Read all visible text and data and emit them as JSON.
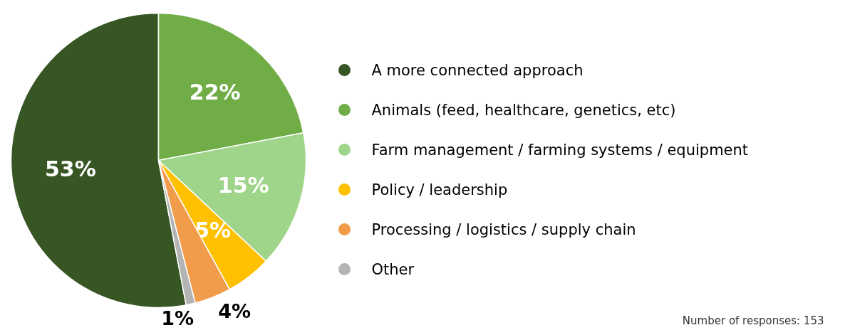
{
  "chart_data": {
    "type": "pie",
    "categories": [
      "A more connected approach",
      "Animals (feed, healthcare, genetics, etc)",
      "Farm management / farming systems / equipment",
      "Policy / leadership",
      "Processing / logistics / supply chain",
      "Other"
    ],
    "values": [
      53,
      22,
      15,
      5,
      4,
      1
    ],
    "colors": [
      "#375623",
      "#70ad47",
      "#9fd58a",
      "#ffc000",
      "#f19c4b",
      "#b4b4b4"
    ],
    "value_labels": [
      "53%",
      "22%",
      "15%",
      "5%",
      "4%",
      "1%"
    ],
    "legend": "right",
    "annotations": [
      "Number of responses: 153"
    ]
  }
}
